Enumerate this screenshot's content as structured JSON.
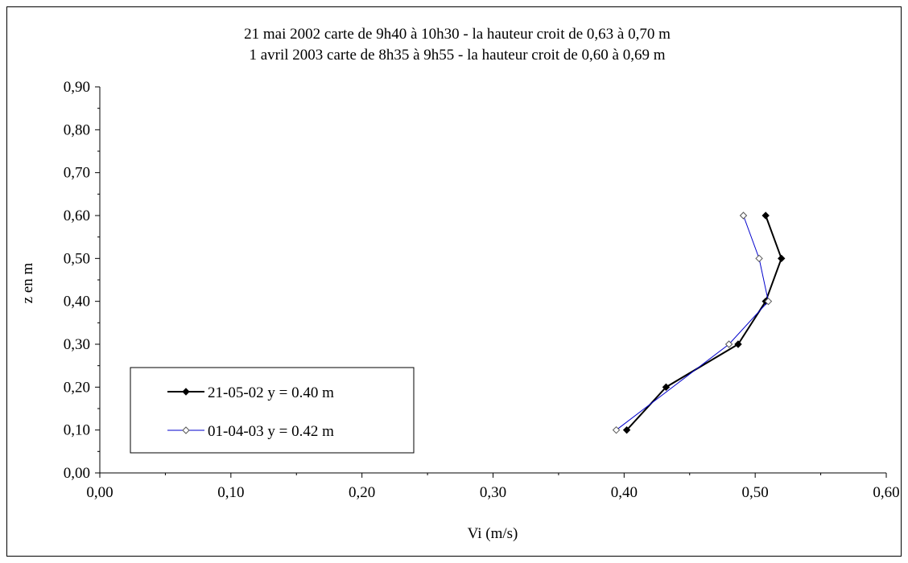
{
  "chart_data": {
    "type": "line",
    "title_lines": [
      "21 mai 2002 carte de 9h40 à 10h30 - la hauteur croit de 0,63 à 0,70 m",
      "1 avril 2003 carte de 8h35 à 9h55 - la hauteur croit de 0,60 à 0,69 m"
    ],
    "xlabel": "Vi (m/s)",
    "ylabel": "z en m",
    "xlim": [
      0,
      0.6
    ],
    "ylim": [
      0,
      0.9
    ],
    "x_ticks": [
      "0,00",
      "0,10",
      "0,20",
      "0,30",
      "0,40",
      "0,50",
      "0,60"
    ],
    "y_ticks": [
      "0,00",
      "0,10",
      "0,20",
      "0,30",
      "0,40",
      "0,50",
      "0,60",
      "0,70",
      "0,80",
      "0,90"
    ],
    "grid": false,
    "legend_position": "bottom-left",
    "series": [
      {
        "name": "21-05-02 y =  0.40 m",
        "color": "#000000",
        "marker": "diamond-filled",
        "points": [
          {
            "x": 0.402,
            "y": 0.1
          },
          {
            "x": 0.432,
            "y": 0.2
          },
          {
            "x": 0.487,
            "y": 0.3
          },
          {
            "x": 0.508,
            "y": 0.4
          },
          {
            "x": 0.52,
            "y": 0.5
          },
          {
            "x": 0.508,
            "y": 0.6
          }
        ]
      },
      {
        "name": "01-04-03 y = 0.42 m",
        "color": "#0000cc",
        "marker": "diamond-open",
        "points": [
          {
            "x": 0.394,
            "y": 0.1
          },
          {
            "x": 0.48,
            "y": 0.3
          },
          {
            "x": 0.51,
            "y": 0.4
          },
          {
            "x": 0.503,
            "y": 0.5
          },
          {
            "x": 0.491,
            "y": 0.6
          }
        ]
      }
    ]
  }
}
